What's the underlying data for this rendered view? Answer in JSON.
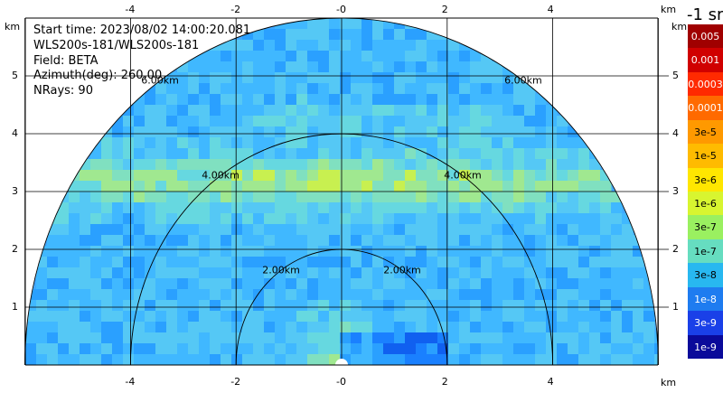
{
  "info": {
    "start_time": "Start time: 2023/08/02 14:00:20.081",
    "instrument": "WLS200s-181/WLS200s-181",
    "field": "Field: BETA",
    "azimuth": "Azimuth(deg): 260.00",
    "nrays": "NRays: 90"
  },
  "chart_data": {
    "type": "heatmap",
    "projection": "polar-rhi-semicircle",
    "field": "BETA",
    "x_unit": "km",
    "y_unit": "km",
    "xlim": [
      -6,
      6
    ],
    "ylim": [
      0,
      6
    ],
    "grid": true,
    "x_ticks": [
      "-4",
      "-2",
      "-0",
      "2",
      "4"
    ],
    "y_ticks": [
      "5",
      "4",
      "3",
      "2",
      "1"
    ],
    "range_rings_km": [
      2,
      4,
      6
    ],
    "range_ring_labels": [
      "2.00km",
      "4.00km",
      "6.00km"
    ],
    "colorbar": {
      "title": "-1 sr",
      "labels": [
        "0.005",
        "0.001",
        "0.0003",
        "0.0001",
        "3e-5",
        "1e-5",
        "3e-6",
        "1e-6",
        "3e-7",
        "1e-7",
        "3e-8",
        "1e-8",
        "3e-9",
        "1e-9"
      ],
      "colors": [
        "#a00000",
        "#d00000",
        "#ff2a00",
        "#ff6a00",
        "#ff9900",
        "#ffbb00",
        "#ffe600",
        "#d8f530",
        "#9af060",
        "#66ddc0",
        "#28b8f0",
        "#1e7cf0",
        "#1a40e8",
        "#0a0a9a"
      ]
    },
    "annotations": [
      "bright aerosol band near 3 km height",
      "enhanced signal near origin (< 1 km)"
    ]
  },
  "unit_label": "km"
}
